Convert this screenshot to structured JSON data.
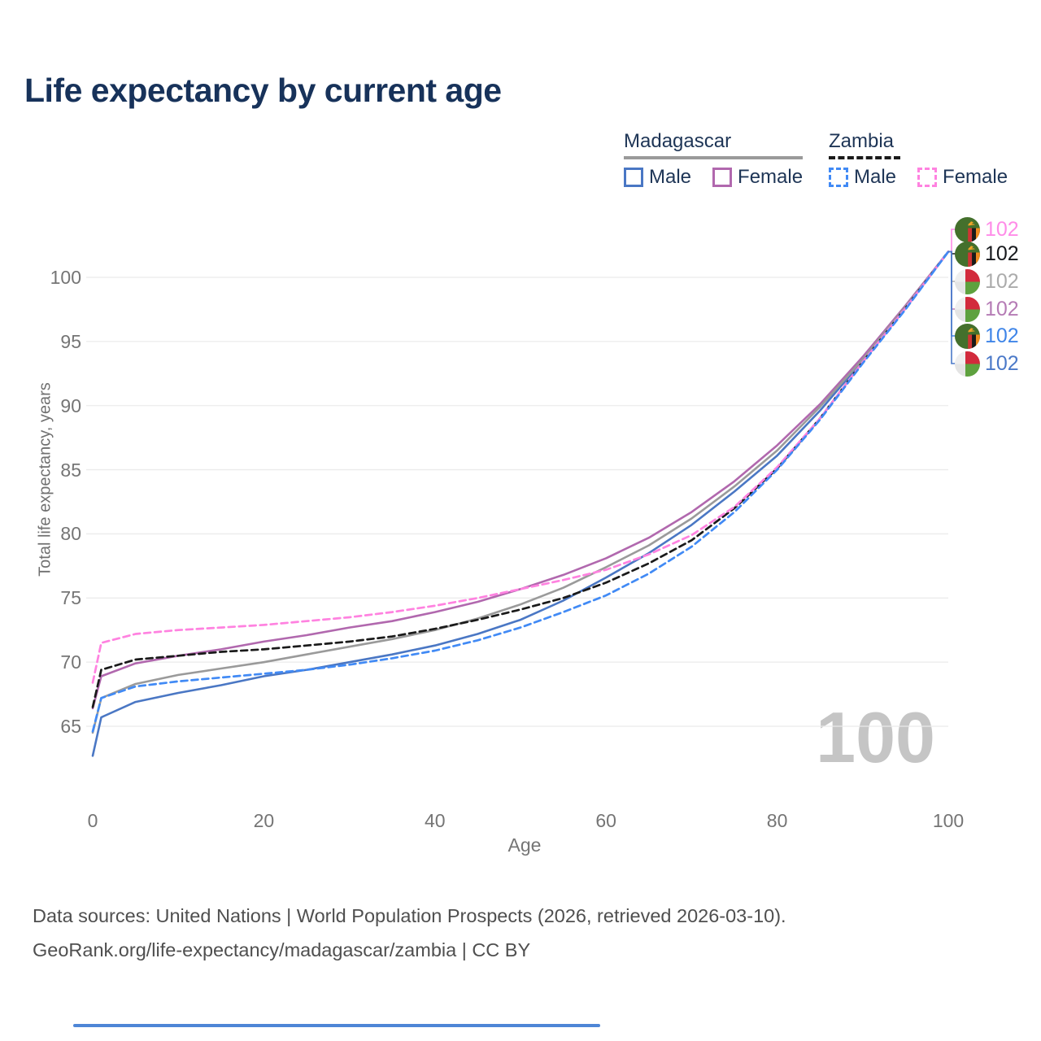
{
  "title": {
    "text": "Life expectancy by current age",
    "color": "#17325a"
  },
  "legend": {
    "groups": [
      {
        "country": "Madagascar",
        "line_style": "solid",
        "line_color": "#9a9a9a",
        "items": [
          {
            "label": "Male",
            "color": "#4a77c4",
            "dashed": false
          },
          {
            "label": "Female",
            "color": "#b168ae",
            "dashed": false
          }
        ]
      },
      {
        "country": "Zambia",
        "line_style": "dashed",
        "line_color": "#1a1a1a",
        "items": [
          {
            "label": "Male",
            "color": "#418af5",
            "dashed": true
          },
          {
            "label": "Female",
            "color": "#ff82e0",
            "dashed": true
          }
        ]
      }
    ]
  },
  "axes": {
    "x_label": "Age",
    "y_label": "Total life expectancy, years",
    "x_ticks": [
      0,
      20,
      40,
      60,
      80,
      100
    ],
    "y_ticks": [
      65,
      70,
      75,
      80,
      85,
      90,
      95,
      100
    ]
  },
  "watermark": {
    "text": "100"
  },
  "chart_data": {
    "type": "line",
    "title": "Life expectancy by current age",
    "xlabel": "Age",
    "ylabel": "Total life expectancy, years",
    "xlim": [
      0,
      100
    ],
    "ylim": [
      62,
      103
    ],
    "grid": "horizontal-only",
    "legend_position": "top-right",
    "x": [
      0,
      1,
      5,
      10,
      15,
      20,
      25,
      30,
      35,
      40,
      45,
      50,
      55,
      60,
      65,
      70,
      75,
      80,
      85,
      90,
      95,
      100
    ],
    "series": [
      {
        "name": "Madagascar Male",
        "color": "#4a77c4",
        "dash": false,
        "values": [
          62.7,
          65.7,
          66.9,
          67.6,
          68.2,
          68.9,
          69.4,
          70.0,
          70.6,
          71.3,
          72.2,
          73.3,
          74.8,
          76.6,
          78.5,
          80.7,
          83.3,
          86.1,
          89.6,
          93.5,
          97.6,
          102
        ]
      },
      {
        "name": "Madagascar Female",
        "color": "#b168ae",
        "dash": false,
        "values": [
          66.4,
          68.9,
          69.9,
          70.5,
          71.0,
          71.6,
          72.1,
          72.7,
          73.2,
          73.9,
          74.7,
          75.7,
          76.8,
          78.1,
          79.7,
          81.7,
          84.1,
          86.9,
          90.1,
          93.8,
          97.8,
          102
        ]
      },
      {
        "name": "Madagascar Both sexes",
        "color": "#9a9a9a",
        "dash": false,
        "values": [
          64.5,
          67.2,
          68.3,
          69.0,
          69.5,
          70.0,
          70.6,
          71.2,
          71.8,
          72.5,
          73.4,
          74.5,
          75.8,
          77.4,
          79.1,
          81.2,
          83.7,
          86.5,
          89.9,
          93.6,
          97.7,
          102
        ]
      },
      {
        "name": "Zambia Both sexes",
        "color": "#1a1a1a",
        "dash": true,
        "values": [
          66.5,
          69.4,
          70.2,
          70.5,
          70.8,
          71.0,
          71.3,
          71.6,
          72.0,
          72.6,
          73.3,
          74.1,
          75.0,
          76.2,
          77.7,
          79.5,
          82.0,
          85.1,
          89.0,
          93.4,
          97.6,
          102
        ]
      },
      {
        "name": "Zambia Female",
        "color": "#ff82e0",
        "dash": true,
        "values": [
          68.4,
          71.5,
          72.2,
          72.5,
          72.7,
          72.9,
          73.2,
          73.5,
          73.9,
          74.4,
          75.0,
          75.7,
          76.4,
          77.2,
          78.4,
          79.9,
          82.1,
          85.2,
          89.0,
          93.4,
          97.6,
          102
        ]
      },
      {
        "name": "Zambia Male",
        "color": "#418af5",
        "dash": true,
        "values": [
          64.6,
          67.2,
          68.1,
          68.5,
          68.8,
          69.1,
          69.4,
          69.8,
          70.3,
          70.9,
          71.7,
          72.7,
          73.9,
          75.2,
          76.9,
          79.0,
          81.7,
          85.0,
          88.9,
          93.3,
          97.5,
          102
        ]
      }
    ],
    "end_labels": [
      {
        "value": "102",
        "flag": "zambia",
        "color": "#ff8ce8",
        "series": "Zambia Female"
      },
      {
        "value": "102",
        "flag": "zambia",
        "color": "#17191d",
        "series": "Zambia Both sexes"
      },
      {
        "value": "102",
        "flag": "madagascar",
        "color": "#ababab",
        "series": "Madagascar Both sexes"
      },
      {
        "value": "102",
        "flag": "madagascar",
        "color": "#b57bb5",
        "series": "Madagascar Female"
      },
      {
        "value": "102",
        "flag": "zambia",
        "color": "#3f85e8",
        "series": "Zambia Male"
      },
      {
        "value": "102",
        "flag": "madagascar",
        "color": "#4b79c8",
        "series": "Madagascar Male"
      }
    ],
    "current_age_indicator": "100"
  },
  "footer": {
    "line1": "Data sources: United Nations | World Population Prospects (2026, retrieved 2026-03-10).",
    "line2": "GeoRank.org/life-expectancy/madagascar/zambia | CC BY"
  }
}
